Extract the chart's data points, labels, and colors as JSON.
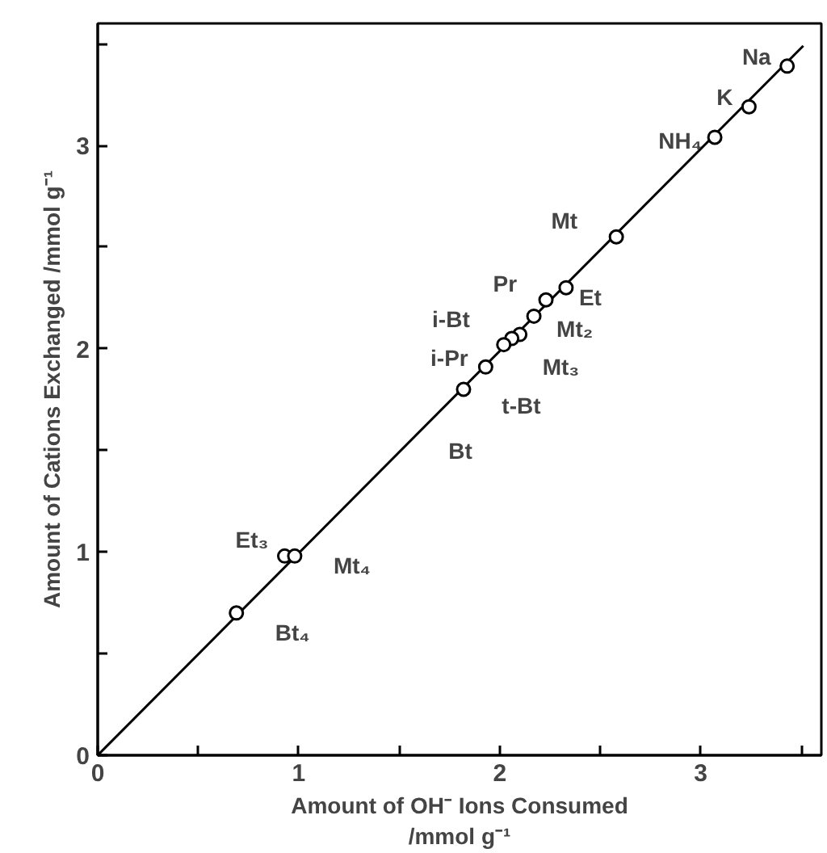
{
  "chart_data": {
    "type": "scatter",
    "xlabel": "Amount of OH⁻ Ions Consumed\n/mmol g⁻¹",
    "ylabel": "Amount of Cations Exchanged /mmol g⁻¹",
    "xlim": [
      0,
      3.6
    ],
    "ylim": [
      0,
      3.6
    ],
    "xticks": [
      0,
      {
        "value": 0.5,
        "label": null
      },
      1,
      {
        "value": 1.5,
        "label": null
      },
      2,
      {
        "value": 2.5,
        "label": null
      },
      3,
      {
        "value": 3.5,
        "label": null
      }
    ],
    "yticks": [
      0,
      {
        "value": 0.5,
        "label": null
      },
      1,
      {
        "value": 1.5,
        "label": null
      },
      2,
      {
        "value": 2.5,
        "label": null
      },
      3,
      {
        "value": 3.5,
        "label": null
      }
    ],
    "grid": false,
    "marker": "circle",
    "series": [
      {
        "type": "line",
        "marker": "none",
        "color": "#000000",
        "x": [
          0,
          3.51
        ],
        "values": [
          0,
          3.49
        ]
      },
      {
        "color": "#000000",
        "x": [
          3.43,
          3.24,
          3.07,
          2.58,
          2.33,
          2.23,
          2.17,
          2.1,
          2.06,
          2.02,
          1.93,
          1.82,
          0.93,
          0.98,
          0.69
        ],
        "values": [
          3.39,
          3.19,
          3.04,
          2.55,
          2.3,
          2.24,
          2.16,
          2.07,
          2.05,
          2.02,
          1.91,
          1.8,
          0.98,
          0.98,
          0.7
        ]
      }
    ],
    "annotations": [
      {
        "text": "Na",
        "x": 3.43,
        "y": 3.39
      },
      {
        "text": "K",
        "x": 3.24,
        "y": 3.19
      },
      {
        "text": "NH₄",
        "x": 3.07,
        "y": 3.04
      },
      {
        "text": "Mt",
        "x": 2.58,
        "y": 2.55
      },
      {
        "text": "Et",
        "x": 2.33,
        "y": 2.3
      },
      {
        "text": "Pr",
        "x": 2.23,
        "y": 2.24
      },
      {
        "text": "Mt₂",
        "x": 2.17,
        "y": 2.16
      },
      {
        "text": "Mt₃",
        "x": 2.1,
        "y": 2.07
      },
      {
        "text": "i-Bt",
        "x": 2.06,
        "y": 2.05
      },
      {
        "text": "i-Pr",
        "x": 2.02,
        "y": 2.02
      },
      {
        "text": "t-Bt",
        "x": 1.93,
        "y": 1.91
      },
      {
        "text": "Bt",
        "x": 1.82,
        "y": 1.8
      },
      {
        "text": "Et₃",
        "x": 0.93,
        "y": 0.98
      },
      {
        "text": "Mt₄",
        "x": 0.98,
        "y": 0.98
      },
      {
        "text": "Bt₄",
        "x": 0.69,
        "y": 0.7
      }
    ]
  }
}
